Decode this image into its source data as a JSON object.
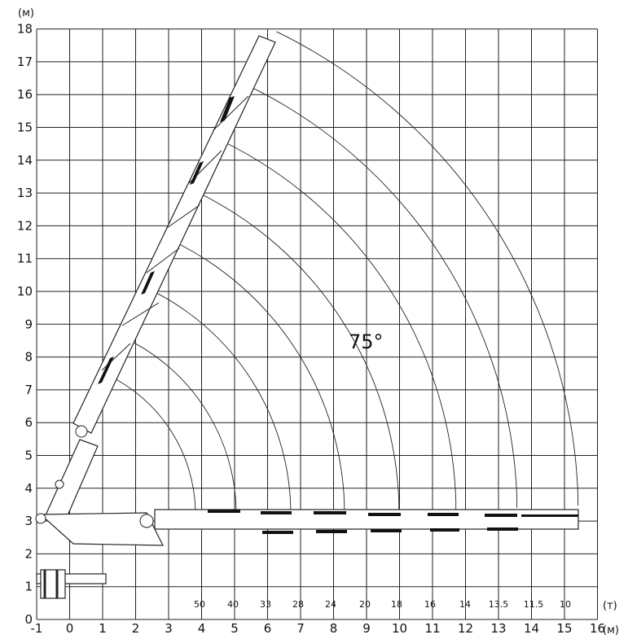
{
  "y_axis": {
    "unit": "(м)",
    "labels": [
      "0",
      "1",
      "2",
      "3",
      "4",
      "5",
      "6",
      "7",
      "8",
      "9",
      "10",
      "11",
      "12",
      "13",
      "14",
      "15",
      "16",
      "17",
      "18"
    ]
  },
  "x_axis": {
    "unit": "(м)",
    "labels": [
      "-1",
      "0",
      "1",
      "2",
      "3",
      "4",
      "5",
      "6",
      "7",
      "8",
      "9",
      "10",
      "11",
      "12",
      "13",
      "14",
      "15",
      "16"
    ]
  },
  "load_unit": "(т)",
  "loads": [
    "50",
    "40",
    "33",
    "28",
    "24",
    "20",
    "18",
    "16",
    "14",
    "13.5",
    "11.5",
    "10"
  ],
  "angle_label": "75°"
}
